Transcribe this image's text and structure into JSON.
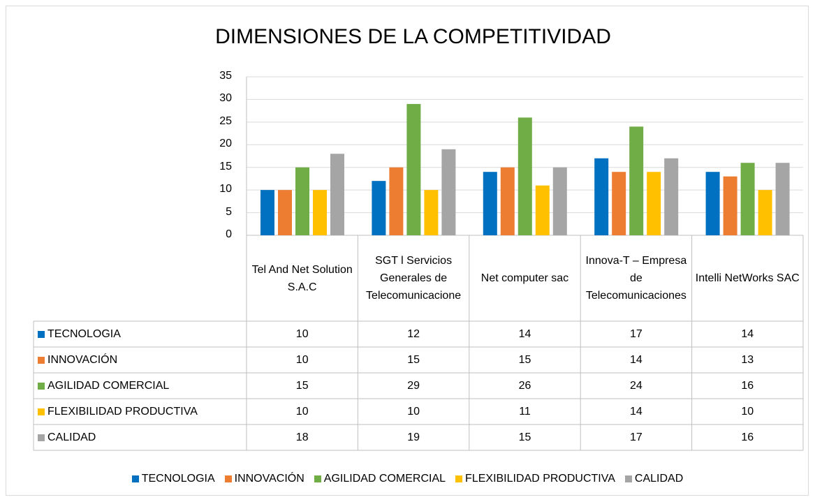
{
  "chart_data": {
    "type": "bar",
    "title": "DIMENSIONES DE LA COMPETITIVIDAD",
    "categories": [
      "Tel And Net Solution S.A.C",
      "SGT l Servicios Generales de Telecomunicacione",
      "Net computer sac",
      "Innova-T – Empresa de Telecomunicaciones",
      "Intelli NetWorks SAC"
    ],
    "series": [
      {
        "name": "TECNOLOGIA",
        "color": "#0070c0",
        "values": [
          10,
          12,
          14,
          17,
          14
        ]
      },
      {
        "name": "INNOVACIÓN",
        "color": "#ed7d31",
        "values": [
          10,
          15,
          15,
          14,
          13
        ]
      },
      {
        "name": "AGILIDAD COMERCIAL",
        "color": "#70ad47",
        "values": [
          15,
          29,
          26,
          24,
          16
        ]
      },
      {
        "name": "FLEXIBILIDAD PRODUCTIVA",
        "color": "#ffc000",
        "values": [
          10,
          10,
          11,
          14,
          10
        ]
      },
      {
        "name": "CALIDAD",
        "color": "#a5a5a5",
        "values": [
          18,
          19,
          15,
          17,
          16
        ]
      }
    ],
    "ylim": [
      0,
      35
    ],
    "yticks": [
      0,
      5,
      10,
      15,
      20,
      25,
      30,
      35
    ],
    "grid": true,
    "legend": "bottom",
    "data_table": true
  }
}
